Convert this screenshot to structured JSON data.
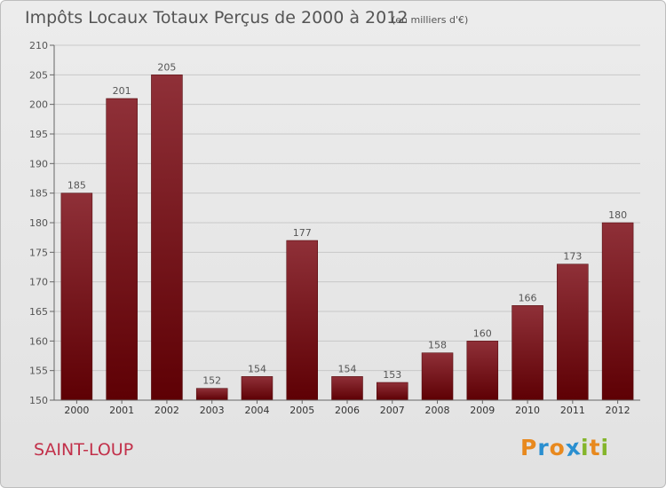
{
  "header": {
    "title": "Impôts Locaux Totaux Perçus de 2000 à 2012",
    "subtitle": "(en milliers d'€)"
  },
  "footer": {
    "location": "SAINT-LOUP",
    "logo": {
      "text": "Proxiti",
      "letters": [
        {
          "char": "P",
          "color": "#e8891e"
        },
        {
          "char": "r",
          "color": "#2a8fd0"
        },
        {
          "char": "o",
          "color": "#e8891e"
        },
        {
          "char": "x",
          "color": "#2a8fd0"
        },
        {
          "char": "i",
          "color": "#84b52b"
        },
        {
          "char": "t",
          "color": "#e8891e"
        },
        {
          "char": "i",
          "color": "#84b52b"
        }
      ]
    }
  },
  "chart_data": {
    "type": "bar",
    "title": "Impôts Locaux Totaux Perçus de 2000 à 2012",
    "subtitle": "(en milliers d'€)",
    "categories": [
      "2000",
      "2001",
      "2002",
      "2003",
      "2004",
      "2005",
      "2006",
      "2007",
      "2008",
      "2009",
      "2010",
      "2011",
      "2012"
    ],
    "values": [
      185,
      201,
      205,
      152,
      154,
      177,
      154,
      153,
      158,
      160,
      166,
      173,
      180
    ],
    "xlabel": "",
    "ylabel": "",
    "ylim": [
      150,
      210
    ],
    "yticks": [
      150,
      155,
      160,
      165,
      170,
      175,
      180,
      185,
      190,
      195,
      200,
      205,
      210
    ],
    "grid": true,
    "bar_color_top": "#8f3038",
    "bar_color_bottom": "#5e0004"
  }
}
